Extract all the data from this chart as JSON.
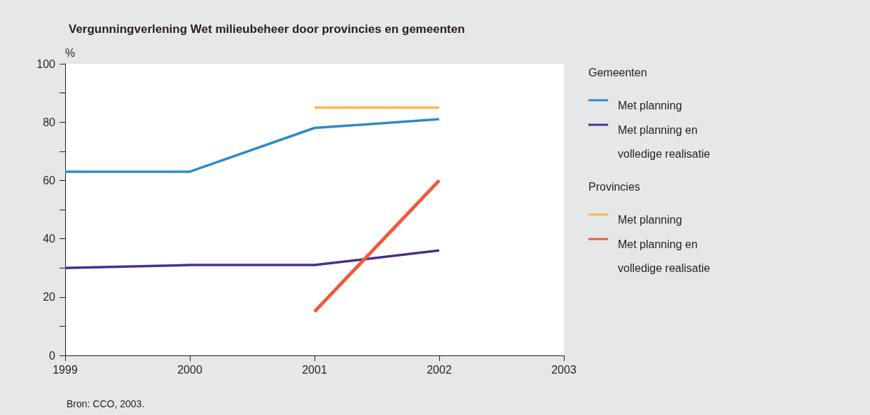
{
  "chart_data": {
    "type": "line",
    "title": "Vergunningverlening Wet milieubeheer door provincies en gemeenten",
    "ylabel": "%",
    "annotations": [
      "Gemeenten",
      "Provincies",
      "Bron: CCO, 2003."
    ],
    "xlim": [
      1999,
      2003
    ],
    "xticks": [
      1999,
      2000,
      2001,
      2002,
      2003
    ],
    "ylim": [
      0,
      100
    ],
    "yticks": [
      0,
      {
        "value": 10,
        "label": null
      },
      20,
      {
        "value": 30,
        "label": null
      },
      40,
      {
        "value": 50,
        "label": null
      },
      60,
      {
        "value": 70,
        "label": null
      },
      80,
      {
        "value": 90,
        "label": null
      },
      100
    ],
    "grid": false,
    "legend": "right",
    "marker": "none",
    "line_style": "solid",
    "series": [
      {
        "name": "Met planning",
        "color": "#2e8ac8",
        "x": [
          1999,
          2000,
          2001,
          2002
        ],
        "values": [
          63,
          63,
          78,
          81
        ]
      },
      {
        "name": "Met planning en volledige realisatie",
        "color": "#4b2e8c",
        "x": [
          1999,
          2000,
          2001,
          2002
        ],
        "values": [
          30,
          31,
          31,
          36
        ]
      },
      {
        "name": "Met planning",
        "color": "#f8b64c",
        "x": [
          2001,
          2002
        ],
        "values": [
          85,
          85
        ]
      },
      {
        "name": "Met planning en volledige realisatie",
        "color": "#ef5a3c",
        "x": [
          2001,
          2002
        ],
        "values": [
          15,
          60
        ]
      }
    ]
  }
}
